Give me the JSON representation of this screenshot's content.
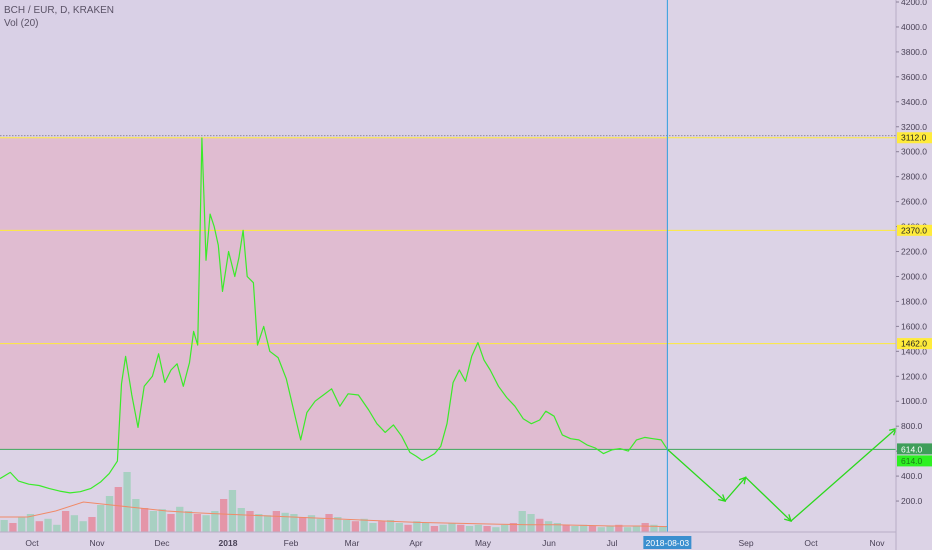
{
  "header": {
    "symbol_line": "BCH / EUR, D, KRAKEN",
    "indicator_line": "Vol (20)"
  },
  "colors": {
    "background": "#dcd3e6",
    "price_line": "#3bea2a",
    "shade": "#e4a9c0",
    "level_line": "#ffeb3b",
    "cursor_line": "#2e9ee0",
    "volume_up": "#9fcfbb",
    "volume_down": "#e58a9c",
    "volume_ma": "#f08a68",
    "projection": "#2cd81d"
  },
  "chart_data": {
    "type": "line",
    "title": "BCH / EUR, D, KRAKEN",
    "ylim": [
      0,
      4200
    ],
    "y_ticks": [
      "200.0",
      "400.0",
      "600.0",
      "800.0",
      "1000.0",
      "1200.0",
      "1400.0",
      "1600.0",
      "1800.0",
      "2000.0",
      "2200.0",
      "2400.0",
      "2600.0",
      "2800.0",
      "3000.0",
      "3200.0",
      "3400.0",
      "3600.0",
      "3800.0",
      "4000.0",
      "4200.0"
    ],
    "x_ticks": [
      "Oct",
      "Nov",
      "Dec",
      "2018",
      "Feb",
      "Mar",
      "Apr",
      "May",
      "Jun",
      "Jul",
      "Sep",
      "Oct",
      "Nov"
    ],
    "x_range": [
      "2017-09-13",
      "2018-11-22"
    ],
    "cursor": {
      "date": "2018-08-03",
      "label": "2018-08-03"
    },
    "price_series": {
      "name": "BCH/EUR close",
      "points": [
        [
          "2017-09-13",
          380
        ],
        [
          "2017-09-18",
          430
        ],
        [
          "2017-09-22",
          360
        ],
        [
          "2017-09-27",
          335
        ],
        [
          "2017-10-02",
          325
        ],
        [
          "2017-10-07",
          300
        ],
        [
          "2017-10-12",
          280
        ],
        [
          "2017-10-17",
          265
        ],
        [
          "2017-10-22",
          275
        ],
        [
          "2017-10-27",
          300
        ],
        [
          "2017-11-01",
          355
        ],
        [
          "2017-11-05",
          420
        ],
        [
          "2017-11-09",
          520
        ],
        [
          "2017-11-11",
          1140
        ],
        [
          "2017-11-13",
          1360
        ],
        [
          "2017-11-16",
          1050
        ],
        [
          "2017-11-19",
          790
        ],
        [
          "2017-11-22",
          1120
        ],
        [
          "2017-11-26",
          1200
        ],
        [
          "2017-11-29",
          1380
        ],
        [
          "2017-12-02",
          1150
        ],
        [
          "2017-12-05",
          1250
        ],
        [
          "2017-12-08",
          1300
        ],
        [
          "2017-12-11",
          1120
        ],
        [
          "2017-12-14",
          1310
        ],
        [
          "2017-12-16",
          1560
        ],
        [
          "2017-12-18",
          1450
        ],
        [
          "2017-12-19",
          2250
        ],
        [
          "2017-12-20",
          3110
        ],
        [
          "2017-12-21",
          2650
        ],
        [
          "2017-12-22",
          2130
        ],
        [
          "2017-12-24",
          2500
        ],
        [
          "2017-12-26",
          2400
        ],
        [
          "2017-12-28",
          2250
        ],
        [
          "2017-12-30",
          1880
        ],
        [
          "2018-01-02",
          2200
        ],
        [
          "2018-01-05",
          2000
        ],
        [
          "2018-01-07",
          2150
        ],
        [
          "2018-01-09",
          2370
        ],
        [
          "2018-01-11",
          2000
        ],
        [
          "2018-01-14",
          1950
        ],
        [
          "2018-01-16",
          1450
        ],
        [
          "2018-01-19",
          1600
        ],
        [
          "2018-01-22",
          1400
        ],
        [
          "2018-01-26",
          1350
        ],
        [
          "2018-01-30",
          1180
        ],
        [
          "2018-02-03",
          900
        ],
        [
          "2018-02-06",
          690
        ],
        [
          "2018-02-09",
          910
        ],
        [
          "2018-02-13",
          1000
        ],
        [
          "2018-02-17",
          1050
        ],
        [
          "2018-02-21",
          1100
        ],
        [
          "2018-02-25",
          960
        ],
        [
          "2018-03-01",
          1060
        ],
        [
          "2018-03-06",
          1050
        ],
        [
          "2018-03-11",
          930
        ],
        [
          "2018-03-15",
          820
        ],
        [
          "2018-03-19",
          750
        ],
        [
          "2018-03-23",
          810
        ],
        [
          "2018-03-27",
          720
        ],
        [
          "2018-03-31",
          590
        ],
        [
          "2018-04-03",
          560
        ],
        [
          "2018-04-06",
          525
        ],
        [
          "2018-04-09",
          550
        ],
        [
          "2018-04-12",
          580
        ],
        [
          "2018-04-15",
          640
        ],
        [
          "2018-04-18",
          820
        ],
        [
          "2018-04-21",
          1150
        ],
        [
          "2018-04-24",
          1250
        ],
        [
          "2018-04-27",
          1160
        ],
        [
          "2018-04-30",
          1360
        ],
        [
          "2018-05-03",
          1470
        ],
        [
          "2018-05-06",
          1330
        ],
        [
          "2018-05-09",
          1250
        ],
        [
          "2018-05-13",
          1120
        ],
        [
          "2018-05-17",
          1030
        ],
        [
          "2018-05-21",
          960
        ],
        [
          "2018-05-25",
          860
        ],
        [
          "2018-05-29",
          820
        ],
        [
          "2018-06-02",
          850
        ],
        [
          "2018-06-05",
          920
        ],
        [
          "2018-06-09",
          880
        ],
        [
          "2018-06-13",
          730
        ],
        [
          "2018-06-17",
          700
        ],
        [
          "2018-06-21",
          690
        ],
        [
          "2018-06-25",
          650
        ],
        [
          "2018-06-29",
          625
        ],
        [
          "2018-07-03",
          580
        ],
        [
          "2018-07-07",
          610
        ],
        [
          "2018-07-11",
          620
        ],
        [
          "2018-07-15",
          600
        ],
        [
          "2018-07-19",
          690
        ],
        [
          "2018-07-23",
          710
        ],
        [
          "2018-07-27",
          700
        ],
        [
          "2018-07-31",
          690
        ],
        [
          "2018-08-03",
          614
        ]
      ]
    },
    "projection_series": {
      "points": [
        [
          "2018-08-03",
          614
        ],
        [
          "2018-08-31",
          200
        ],
        [
          "2018-09-10",
          390
        ],
        [
          "2018-10-02",
          40
        ],
        [
          "2018-11-22",
          780
        ]
      ]
    },
    "horizontal_levels": [
      {
        "value": 3112.0,
        "label": "3112.0"
      },
      {
        "value": 2370.0,
        "label": "2370.0"
      },
      {
        "value": 1462.0,
        "label": "1462.0"
      }
    ],
    "current_price": {
      "value": 614.0,
      "label": "614.0",
      "sub_label": "614.0"
    },
    "shaded_band": {
      "from": 614.0,
      "to": 3112.0,
      "start": "2017-09-13",
      "end": "2018-08-03"
    },
    "volume": {
      "name": "Vol (20)",
      "start": "2017-09-13",
      "end": "2018-08-03",
      "relative_heights": [
        0.2,
        0.15,
        0.25,
        0.3,
        0.18,
        0.22,
        0.12,
        0.35,
        0.28,
        0.18,
        0.25,
        0.45,
        0.6,
        0.75,
        1.0,
        0.55,
        0.4,
        0.35,
        0.38,
        0.3,
        0.42,
        0.35,
        0.3,
        0.28,
        0.35,
        0.55,
        0.7,
        0.4,
        0.35,
        0.3,
        0.28,
        0.35,
        0.32,
        0.3,
        0.25,
        0.28,
        0.22,
        0.3,
        0.25,
        0.2,
        0.18,
        0.22,
        0.15,
        0.18,
        0.2,
        0.15,
        0.12,
        0.18,
        0.15,
        0.1,
        0.12,
        0.15,
        0.12,
        0.1,
        0.12,
        0.1,
        0.08,
        0.12,
        0.15,
        0.35,
        0.3,
        0.22,
        0.18,
        0.15,
        0.12,
        0.1,
        0.12,
        0.1,
        0.08,
        0.1,
        0.12,
        0.08,
        0.1,
        0.15,
        0.12,
        0.1
      ],
      "ma_relative_heights": [
        0.25,
        0.25,
        0.35,
        0.5,
        0.45,
        0.4,
        0.35,
        0.32,
        0.3,
        0.28,
        0.26,
        0.24,
        0.22,
        0.2,
        0.18,
        0.16,
        0.15,
        0.14,
        0.13,
        0.12,
        0.12,
        0.11,
        0.1,
        0.1,
        0.09
      ]
    }
  }
}
